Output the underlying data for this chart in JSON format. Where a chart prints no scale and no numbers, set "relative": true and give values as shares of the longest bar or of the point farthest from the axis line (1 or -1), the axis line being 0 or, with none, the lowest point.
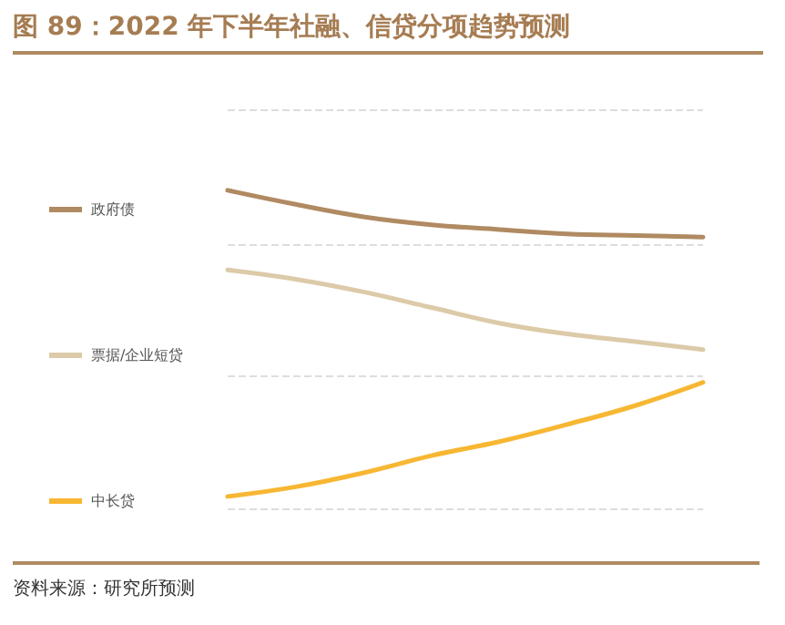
{
  "chart_data": {
    "type": "line",
    "title": "图 89：2022 年下半年社融、信贷分项趋势预测",
    "annotations": [
      "资料来源：研究所预测"
    ],
    "relative": true,
    "categories": [
      null,
      null,
      null,
      null,
      null,
      null,
      null,
      null
    ],
    "legend": "left",
    "marker": "none",
    "line_style": "solid",
    "ref_lines": [
      {
        "axis": "y",
        "value": 1.25,
        "color": "#dddddd",
        "line_style": "dashed"
      },
      {
        "axis": "y",
        "value": 0.83,
        "color": "#dddddd",
        "line_style": "dashed"
      },
      {
        "axis": "y",
        "value": 0.42,
        "color": "#dddddd",
        "line_style": "dashed"
      },
      {
        "axis": "y",
        "value": 0,
        "color": "#dddddd",
        "line_style": "dashed"
      }
    ],
    "series": [
      {
        "name": "政府债",
        "color": "#b08a62",
        "values": [
          1,
          0.956,
          0.917,
          0.892,
          0.877,
          0.863,
          0.858,
          0.853
        ]
      },
      {
        "name": "票据/企业短贷",
        "color": "#dccaa8",
        "values": [
          0.75,
          0.721,
          0.681,
          0.632,
          0.583,
          0.549,
          0.525,
          0.5
        ]
      },
      {
        "name": "中长贷",
        "color": "#f7b733",
        "values": [
          0.039,
          0.069,
          0.113,
          0.167,
          0.211,
          0.265,
          0.324,
          0.397
        ]
      }
    ]
  }
}
